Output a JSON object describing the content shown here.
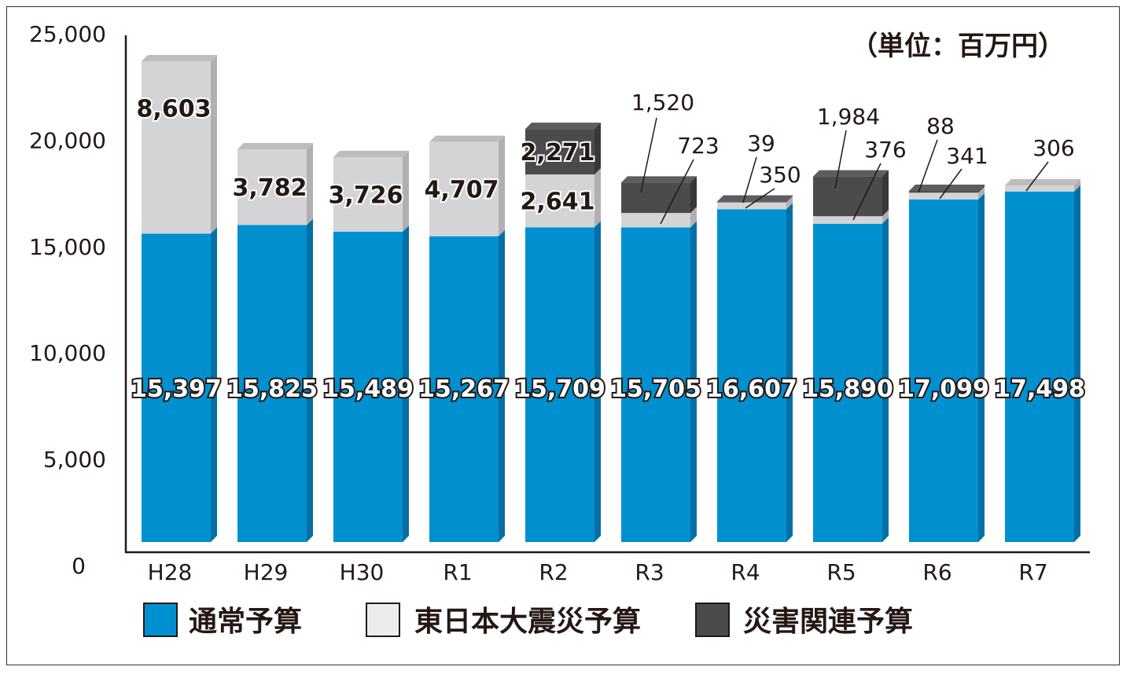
{
  "chart_data": {
    "type": "bar",
    "stacked": true,
    "unit_label": "（単位：百万円）",
    "categories": [
      "H28",
      "H29",
      "H30",
      "R1",
      "R2",
      "R3",
      "R4",
      "R5",
      "R6",
      "R7"
    ],
    "series": [
      {
        "name": "通常予算",
        "color": "#0090d0",
        "values": [
          15397,
          15825,
          15489,
          15267,
          15709,
          15705,
          16607,
          15890,
          17099,
          17498
        ],
        "labels": [
          "15,397",
          "15,825",
          "15,489",
          "15,267",
          "15,709",
          "15,705",
          "16,607",
          "15,890",
          "17,099",
          "17,498"
        ]
      },
      {
        "name": "東日本大震災予算",
        "color": "#d4d4d6",
        "values": [
          8603,
          3782,
          3726,
          4707,
          2641,
          723,
          350,
          376,
          341,
          306
        ],
        "labels": [
          "8,603",
          "3,782",
          "3,726",
          "4,707",
          "2,641",
          "723",
          "350",
          "376",
          "341",
          "306"
        ]
      },
      {
        "name": "災害関連予算",
        "color": "#4b4a4c",
        "values": [
          0,
          0,
          0,
          0,
          2271,
          1520,
          39,
          1984,
          88,
          0
        ],
        "labels": [
          "",
          "",
          "",
          "",
          "2,271",
          "1,520",
          "39",
          "1,984",
          "88",
          ""
        ]
      }
    ],
    "yticks": [
      0,
      5000,
      10000,
      15000,
      20000,
      25000
    ],
    "ytick_labels": [
      "0",
      "5,000",
      "10,000",
      "15,000",
      "20,000",
      "25,000"
    ],
    "ylim": [
      0,
      25000
    ],
    "legend_position": "bottom",
    "grid": false
  }
}
